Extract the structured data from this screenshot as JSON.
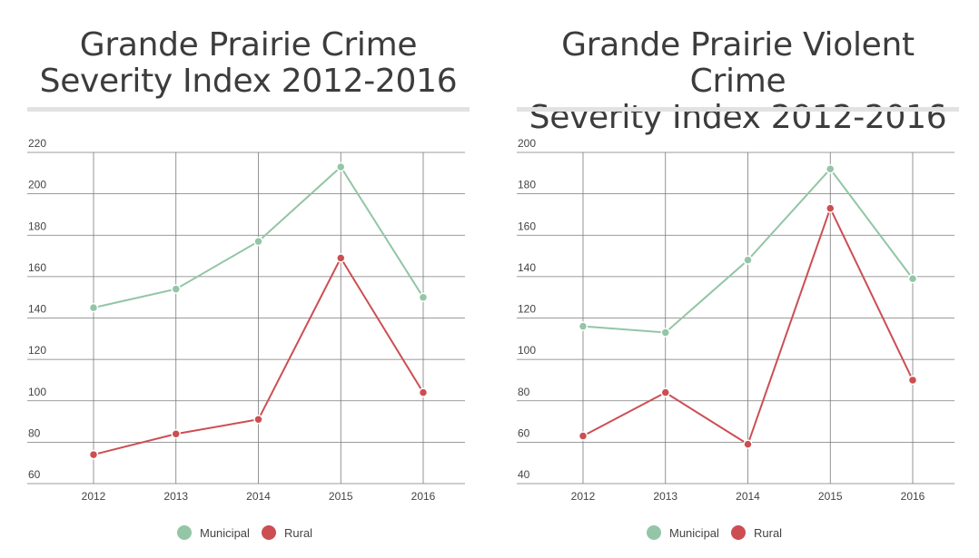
{
  "charts": [
    {
      "title_line1": "Grande Prairie Crime",
      "title_line2": "Severity Index 2012-2016"
    },
    {
      "title_line1": "Grande Prairie Violent Crime",
      "title_line2": "Severity Index 2012-2016"
    }
  ],
  "legend": {
    "municipal": "Municipal",
    "rural": "Rural"
  },
  "colors": {
    "municipal": "#93c5a6",
    "rural": "#cc4e52",
    "grid": "#7a7a7a"
  },
  "chart_data": [
    {
      "type": "line",
      "title": "Grande Prairie Crime Severity Index 2012-2016",
      "categories": [
        "2012",
        "2013",
        "2014",
        "2015",
        "2016"
      ],
      "yticks": [
        "60",
        "80",
        "100",
        "120",
        "140",
        "160",
        "180",
        "200",
        "220"
      ],
      "ylim": [
        60,
        220
      ],
      "series": [
        {
          "name": "Municipal",
          "values": [
            145,
            154,
            177,
            213,
            150
          ]
        },
        {
          "name": "Rural",
          "values": [
            74,
            84,
            91,
            169,
            104
          ]
        }
      ],
      "grid": true,
      "legend": "bottom"
    },
    {
      "type": "line",
      "title": "Grande Prairie Violent Crime Severity Index 2012-2016",
      "categories": [
        "2012",
        "2013",
        "2014",
        "2015",
        "2016"
      ],
      "yticks": [
        "40",
        "60",
        "80",
        "100",
        "120",
        "140",
        "160",
        "180",
        "200"
      ],
      "ylim": [
        40,
        200
      ],
      "series": [
        {
          "name": "Municipal",
          "values": [
            116,
            113,
            148,
            192,
            139
          ]
        },
        {
          "name": "Rural",
          "values": [
            63,
            84,
            59,
            173,
            90
          ]
        }
      ],
      "grid": true,
      "legend": "bottom"
    }
  ]
}
